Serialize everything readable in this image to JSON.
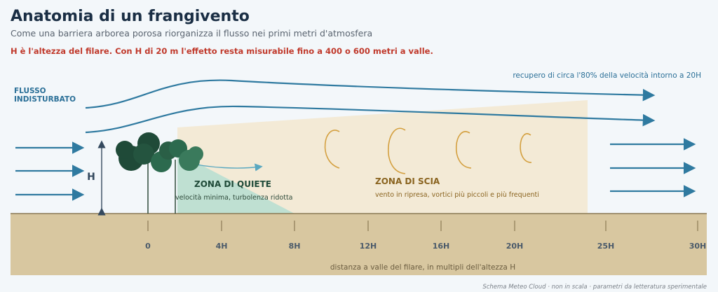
{
  "header": {
    "title": "Anatomia di un frangivento",
    "subtitle": "Come una barriera arborea porosa riorganizza il flusso nei primi metri d'atmosfera",
    "note": "H è l'altezza del filare. Con H di 20 m l'effetto resta misurabile fino a 400 o 600 metri a valle."
  },
  "flow": {
    "label_line1": "FLUSSO",
    "label_line2": "INDISTURBATO",
    "recovery": "recupero di circa l'80% della velocità intorno a 20H"
  },
  "barrier": {
    "height_label": "H"
  },
  "zones": [
    {
      "title": "ZONA DI QUIETE",
      "description": "velocità minima, turbolenza ridotta"
    },
    {
      "title": "ZONA DI SCIA",
      "description": "vento in ripresa, vortici più piccoli e più frequenti"
    }
  ],
  "axis": {
    "ticks": [
      "0",
      "4H",
      "8H",
      "12H",
      "16H",
      "20H",
      "25H",
      "30H"
    ],
    "label": "distanza a valle del filare, in multipli dell'altezza H"
  },
  "footer": "Schema Meteo Cloud · non in scala · parametri da letteratura sperimentale"
}
